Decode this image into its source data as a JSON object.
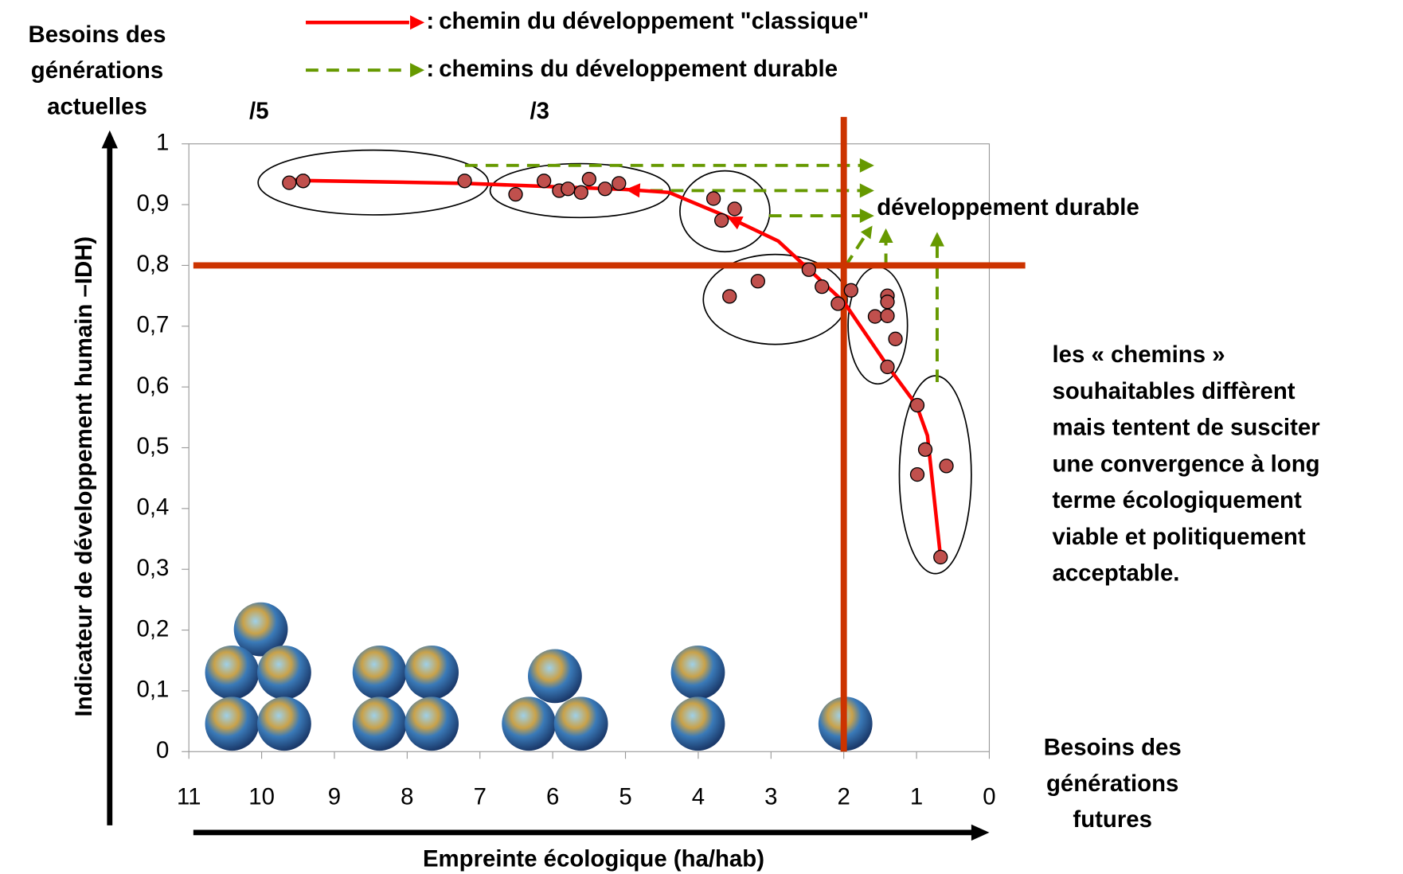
{
  "chart_data": {
    "type": "scatter",
    "legend": [
      "chemin du développement \"classique\"",
      "chemins du développement durable"
    ],
    "legend_prefix": ":",
    "x_label": "Empreinte écologique (ha/hab)",
    "y_label": "Indicateur de développement humain –IDH)",
    "top_left_label": [
      "Besoins des",
      "générations",
      "actuelles"
    ],
    "bottom_right_label": [
      "Besoins des",
      "générations",
      "futures"
    ],
    "annotations": [
      "/5",
      "/3",
      "développement durable"
    ],
    "note": [
      "les « chemins »",
      "souhaitables diffèrent",
      "mais tentent de susciter",
      "une convergence à long",
      "terme écologiquement",
      "viable et politiquement",
      "acceptable."
    ],
    "xlim": [
      11,
      0
    ],
    "ylim": [
      0,
      1
    ],
    "xticks": [
      11,
      10,
      9,
      8,
      7,
      6,
      5,
      4,
      3,
      2,
      1,
      0
    ],
    "yticks": [
      0,
      {
        "value": 0.1,
        "label": "0,1"
      },
      {
        "value": 0.2,
        "label": "0,2"
      },
      {
        "value": 0.3,
        "label": "0,3"
      },
      {
        "value": 0.4,
        "label": "0,4"
      },
      {
        "value": 0.5,
        "label": "0,5"
      },
      {
        "value": 0.6,
        "label": "0,6"
      },
      {
        "value": 0.7,
        "label": "0,7"
      },
      {
        "value": 0.8,
        "label": "0,8"
      },
      {
        "value": 0.9,
        "label": "0,9"
      },
      1
    ],
    "reference_lines": {
      "x": 2,
      "y": 0.8,
      "color": "#cc3300"
    },
    "points": {
      "color": "#c0504d",
      "x": [
        9.62,
        9.43,
        7.21,
        6.51,
        6.12,
        5.91,
        5.79,
        5.61,
        5.5,
        5.28,
        5.09,
        3.79,
        3.68,
        3.5,
        3.18,
        3.57,
        2.48,
        2.3,
        1.9,
        2.08,
        1.57,
        1.4,
        1.4,
        1.4,
        1.29,
        1.4,
        0.99,
        0.88,
        0.59,
        0.99,
        0.67
      ],
      "y": [
        0.936,
        0.939,
        0.939,
        0.917,
        0.939,
        0.923,
        0.926,
        0.92,
        0.942,
        0.926,
        0.935,
        0.91,
        0.874,
        0.893,
        0.774,
        0.749,
        0.793,
        0.765,
        0.759,
        0.737,
        0.716,
        0.75,
        0.74,
        0.717,
        0.679,
        0.633,
        0.57,
        0.497,
        0.47,
        0.456,
        0.32
      ]
    },
    "classic_path": {
      "color": "#ff0000",
      "x": [
        0.67,
        0.85,
        1.0,
        1.4,
        2.0,
        2.9,
        3.6,
        4.4,
        5.0,
        7.2,
        9.6
      ],
      "y": [
        0.32,
        0.52,
        0.57,
        0.635,
        0.74,
        0.84,
        0.88,
        0.92,
        0.925,
        0.935,
        0.94
      ]
    },
    "sustainable_color": "#669900"
  }
}
